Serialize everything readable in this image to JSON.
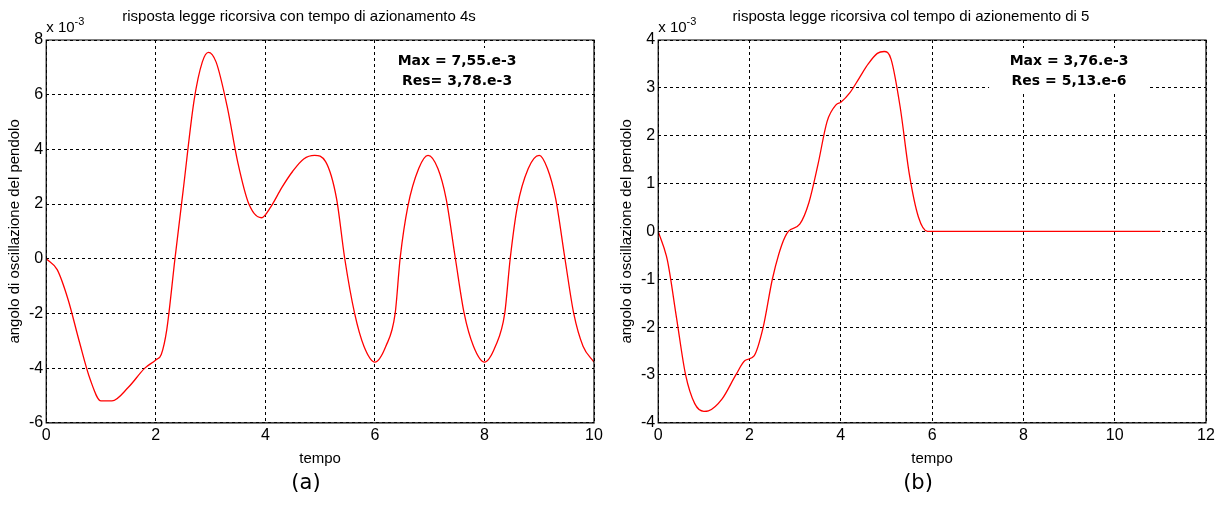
{
  "chart_data": [
    {
      "type": "line",
      "title": "risposta legge ricorsiva con tempo di azionamento 4s",
      "xlabel": "tempo",
      "ylabel": "angolo di oscillazione del pendolo",
      "annotations": [
        "x 10$^{-3}$",
        "Max = 7,55.e-3",
        "Res= 3,78.e-3",
        "(a)"
      ],
      "series": [
        {
          "color": "#ff0000",
          "x": [
            0,
            0.2,
            0.4,
            0.6,
            0.8,
            1.0,
            1.2,
            1.5,
            1.8,
            2.0,
            2.1,
            2.2,
            2.35,
            2.5,
            2.7,
            2.85,
            2.96,
            3.1,
            3.3,
            3.5,
            3.7,
            3.93,
            4.1,
            4.3,
            4.5,
            4.7,
            4.9,
            5.1,
            5.3,
            5.45,
            5.63,
            5.8,
            6.0,
            6.2,
            6.37,
            6.46,
            6.6,
            6.8,
            6.97,
            7.15,
            7.3,
            7.47,
            7.63,
            7.8,
            8.0,
            8.2,
            8.37,
            8.47,
            8.6,
            8.8,
            9.0,
            9.15,
            9.3,
            9.47,
            9.63,
            9.8,
            10
          ],
          "values": [
            0,
            -0.4,
            -1.5,
            -3.0,
            -4.4,
            -5.2,
            -5.2,
            -4.7,
            -4.0,
            -3.7,
            -3.5,
            -2.6,
            0,
            2.5,
            5.8,
            7.2,
            7.55,
            7.2,
            5.6,
            3.5,
            2.0,
            1.5,
            1.9,
            2.6,
            3.2,
            3.65,
            3.78,
            3.55,
            2.2,
            0,
            -2.0,
            -3.2,
            -3.78,
            -3.2,
            -2.0,
            0,
            1.9,
            3.3,
            3.78,
            3.3,
            2.2,
            0,
            -2.0,
            -3.2,
            -3.78,
            -3.2,
            -2.0,
            0,
            1.9,
            3.3,
            3.78,
            3.3,
            2.2,
            0,
            -2.0,
            -3.2,
            -3.78
          ]
        }
      ],
      "xlim": [
        0,
        10
      ],
      "xticks": [
        0,
        2,
        4,
        6,
        8,
        10
      ],
      "ylim": [
        -6,
        8
      ],
      "yticks": [
        -6,
        -4,
        -2,
        0,
        2,
        4,
        6,
        8
      ],
      "grid": true,
      "legend": false,
      "marker": "none",
      "line_style": "solid"
    },
    {
      "type": "line",
      "title": "risposta legge ricorsiva col tempo di azionemento di 5",
      "xlabel": "tempo",
      "ylabel": "angolo di oscillazione del pendolo",
      "annotations": [
        "x 10$^{-3}$",
        "Max = 3,76.e-3",
        "Res = 5,13.e-6",
        "(b)"
      ],
      "series": [
        {
          "color": "#ff0000",
          "x": [
            0,
            0.2,
            0.4,
            0.6,
            0.8,
            1.0,
            1.1,
            1.4,
            1.7,
            1.9,
            2.1,
            2.3,
            2.5,
            2.7,
            2.85,
            3.1,
            3.3,
            3.5,
            3.7,
            3.9,
            4.0,
            4.2,
            4.4,
            4.6,
            4.8,
            4.95,
            5.1,
            5.3,
            5.5,
            5.7,
            5.9,
            6.0,
            11
          ],
          "values": [
            0,
            -0.6,
            -1.8,
            -3.0,
            -3.6,
            -3.76,
            -3.75,
            -3.5,
            -3.0,
            -2.7,
            -2.6,
            -2.0,
            -1.0,
            -0.3,
            0,
            0.15,
            0.6,
            1.4,
            2.3,
            2.65,
            2.7,
            2.9,
            3.2,
            3.5,
            3.72,
            3.76,
            3.6,
            2.6,
            1.2,
            0.3,
            0,
            0,
            0
          ]
        }
      ],
      "xlim": [
        0,
        12
      ],
      "xticks": [
        0,
        2,
        4,
        6,
        8,
        10,
        12
      ],
      "ylim": [
        -4,
        4
      ],
      "yticks": [
        -4,
        -3,
        -2,
        -1,
        0,
        1,
        2,
        3,
        4
      ],
      "grid": true,
      "legend": false,
      "marker": "none",
      "line_style": "solid"
    }
  ]
}
